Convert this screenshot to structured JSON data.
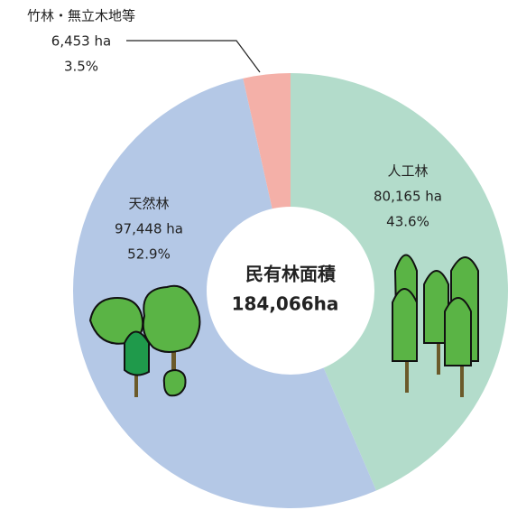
{
  "chart_data": {
    "type": "donut",
    "categories": [
      "人工林",
      "天然林",
      "竹林・無立木地等"
    ],
    "values": [
      80165,
      97448,
      6453
    ],
    "value_labels": [
      "80,165 ha",
      "97,448 ha",
      "6,453 ha"
    ],
    "percents": [
      43.6,
      52.9,
      3.5
    ],
    "percent_labels": [
      "43.6%",
      "52.9%",
      "3.5%"
    ],
    "colors": [
      "#b3dccb",
      "#b4c8e6",
      "#f4b0a8"
    ],
    "center_title": "民有林面積",
    "total": 184066,
    "total_label": "184,066ha"
  }
}
